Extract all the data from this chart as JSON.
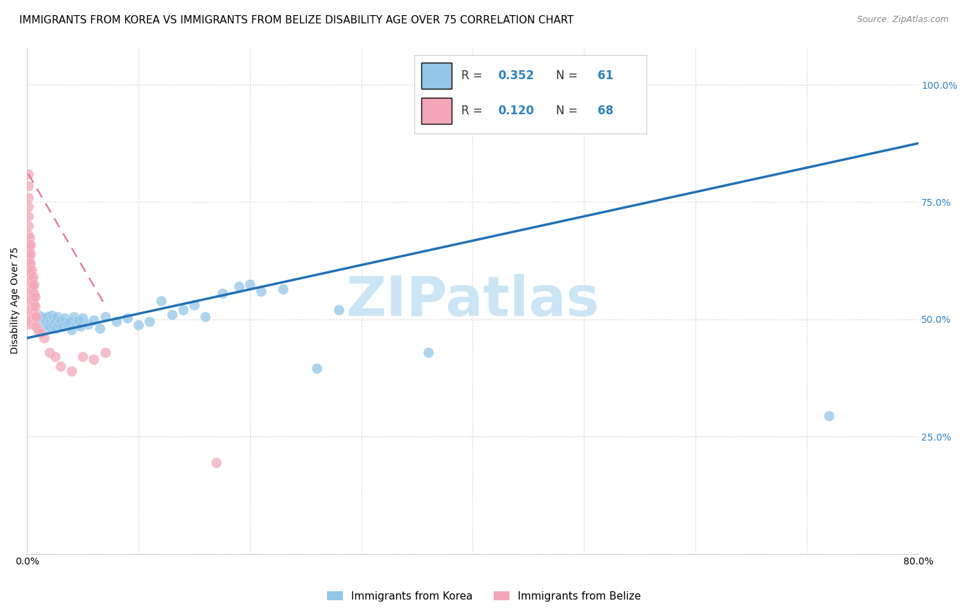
{
  "title": "IMMIGRANTS FROM KOREA VS IMMIGRANTS FROM BELIZE DISABILITY AGE OVER 75 CORRELATION CHART",
  "source": "Source: ZipAtlas.com",
  "ylabel": "Disability Age Over 75",
  "xlim": [
    0.0,
    0.8
  ],
  "ylim": [
    0.0,
    1.08
  ],
  "yticks": [
    0.0,
    0.25,
    0.5,
    0.75,
    1.0
  ],
  "ytick_labels": [
    "",
    "25.0%",
    "50.0%",
    "75.0%",
    "100.0%"
  ],
  "xticks": [
    0.0,
    0.1,
    0.2,
    0.3,
    0.4,
    0.5,
    0.6,
    0.7,
    0.8
  ],
  "xtick_labels": [
    "0.0%",
    "",
    "",
    "",
    "",
    "",
    "",
    "",
    "80.0%"
  ],
  "korea_R": 0.352,
  "korea_N": 61,
  "belize_R": 0.12,
  "belize_N": 68,
  "korea_color": "#93c6e8",
  "belize_color": "#f4a7b9",
  "trendline_korea_color": "#2171b5",
  "trendline_belize_color": "#e08098",
  "korea_scatter": [
    [
      0.002,
      0.5
    ],
    [
      0.003,
      0.51
    ],
    [
      0.004,
      0.495
    ],
    [
      0.005,
      0.505
    ],
    [
      0.006,
      0.488
    ],
    [
      0.007,
      0.502
    ],
    [
      0.008,
      0.498
    ],
    [
      0.009,
      0.485
    ],
    [
      0.01,
      0.492
    ],
    [
      0.01,
      0.508
    ],
    [
      0.011,
      0.48
    ],
    [
      0.012,
      0.498
    ],
    [
      0.013,
      0.505
    ],
    [
      0.014,
      0.488
    ],
    [
      0.015,
      0.502
    ],
    [
      0.016,
      0.478
    ],
    [
      0.017,
      0.495
    ],
    [
      0.018,
      0.505
    ],
    [
      0.019,
      0.49
    ],
    [
      0.02,
      0.485
    ],
    [
      0.021,
      0.498
    ],
    [
      0.022,
      0.508
    ],
    [
      0.023,
      0.488
    ],
    [
      0.024,
      0.502
    ],
    [
      0.025,
      0.495
    ],
    [
      0.026,
      0.48
    ],
    [
      0.027,
      0.505
    ],
    [
      0.028,
      0.49
    ],
    [
      0.03,
      0.498
    ],
    [
      0.032,
      0.485
    ],
    [
      0.034,
      0.502
    ],
    [
      0.036,
      0.49
    ],
    [
      0.038,
      0.495
    ],
    [
      0.04,
      0.478
    ],
    [
      0.042,
      0.505
    ],
    [
      0.044,
      0.488
    ],
    [
      0.046,
      0.498
    ],
    [
      0.048,
      0.485
    ],
    [
      0.05,
      0.502
    ],
    [
      0.055,
      0.49
    ],
    [
      0.06,
      0.498
    ],
    [
      0.065,
      0.48
    ],
    [
      0.07,
      0.505
    ],
    [
      0.08,
      0.495
    ],
    [
      0.09,
      0.502
    ],
    [
      0.1,
      0.488
    ],
    [
      0.11,
      0.495
    ],
    [
      0.12,
      0.54
    ],
    [
      0.13,
      0.51
    ],
    [
      0.14,
      0.52
    ],
    [
      0.15,
      0.53
    ],
    [
      0.16,
      0.505
    ],
    [
      0.175,
      0.555
    ],
    [
      0.19,
      0.57
    ],
    [
      0.2,
      0.575
    ],
    [
      0.21,
      0.56
    ],
    [
      0.23,
      0.565
    ],
    [
      0.26,
      0.395
    ],
    [
      0.28,
      0.52
    ],
    [
      0.36,
      0.43
    ],
    [
      0.72,
      0.295
    ]
  ],
  "belize_scatter": [
    [
      0.001,
      0.49
    ],
    [
      0.001,
      0.51
    ],
    [
      0.001,
      0.53
    ],
    [
      0.001,
      0.55
    ],
    [
      0.001,
      0.57
    ],
    [
      0.001,
      0.6
    ],
    [
      0.001,
      0.62
    ],
    [
      0.001,
      0.64
    ],
    [
      0.001,
      0.66
    ],
    [
      0.001,
      0.68
    ],
    [
      0.001,
      0.7
    ],
    [
      0.001,
      0.72
    ],
    [
      0.001,
      0.74
    ],
    [
      0.001,
      0.76
    ],
    [
      0.001,
      0.785
    ],
    [
      0.001,
      0.81
    ],
    [
      0.002,
      0.495
    ],
    [
      0.002,
      0.515
    ],
    [
      0.002,
      0.535
    ],
    [
      0.002,
      0.555
    ],
    [
      0.002,
      0.575
    ],
    [
      0.002,
      0.595
    ],
    [
      0.002,
      0.615
    ],
    [
      0.002,
      0.635
    ],
    [
      0.002,
      0.655
    ],
    [
      0.002,
      0.675
    ],
    [
      0.003,
      0.5
    ],
    [
      0.003,
      0.52
    ],
    [
      0.003,
      0.54
    ],
    [
      0.003,
      0.56
    ],
    [
      0.003,
      0.58
    ],
    [
      0.003,
      0.6
    ],
    [
      0.003,
      0.62
    ],
    [
      0.003,
      0.64
    ],
    [
      0.003,
      0.66
    ],
    [
      0.004,
      0.505
    ],
    [
      0.004,
      0.525
    ],
    [
      0.004,
      0.545
    ],
    [
      0.004,
      0.565
    ],
    [
      0.004,
      0.585
    ],
    [
      0.004,
      0.605
    ],
    [
      0.005,
      0.51
    ],
    [
      0.005,
      0.53
    ],
    [
      0.005,
      0.55
    ],
    [
      0.005,
      0.57
    ],
    [
      0.005,
      0.59
    ],
    [
      0.006,
      0.515
    ],
    [
      0.006,
      0.535
    ],
    [
      0.006,
      0.555
    ],
    [
      0.006,
      0.575
    ],
    [
      0.007,
      0.488
    ],
    [
      0.007,
      0.508
    ],
    [
      0.007,
      0.528
    ],
    [
      0.007,
      0.548
    ],
    [
      0.008,
      0.485
    ],
    [
      0.008,
      0.505
    ],
    [
      0.009,
      0.48
    ],
    [
      0.01,
      0.475
    ],
    [
      0.012,
      0.47
    ],
    [
      0.015,
      0.46
    ],
    [
      0.02,
      0.43
    ],
    [
      0.025,
      0.42
    ],
    [
      0.03,
      0.4
    ],
    [
      0.04,
      0.39
    ],
    [
      0.05,
      0.42
    ],
    [
      0.06,
      0.415
    ],
    [
      0.07,
      0.43
    ],
    [
      0.17,
      0.195
    ]
  ],
  "korea_trend_x": [
    0.0,
    0.8
  ],
  "korea_trend_y": [
    0.46,
    0.875
  ],
  "belize_trend_x": [
    0.001,
    0.07
  ],
  "belize_trend_y": [
    0.81,
    0.53
  ],
  "background_color": "#ffffff",
  "grid_color": "#d0d0d0",
  "title_fontsize": 11,
  "axis_label_fontsize": 10,
  "tick_fontsize": 10,
  "watermark": "ZIPatlas",
  "watermark_color": "#cce5f5"
}
